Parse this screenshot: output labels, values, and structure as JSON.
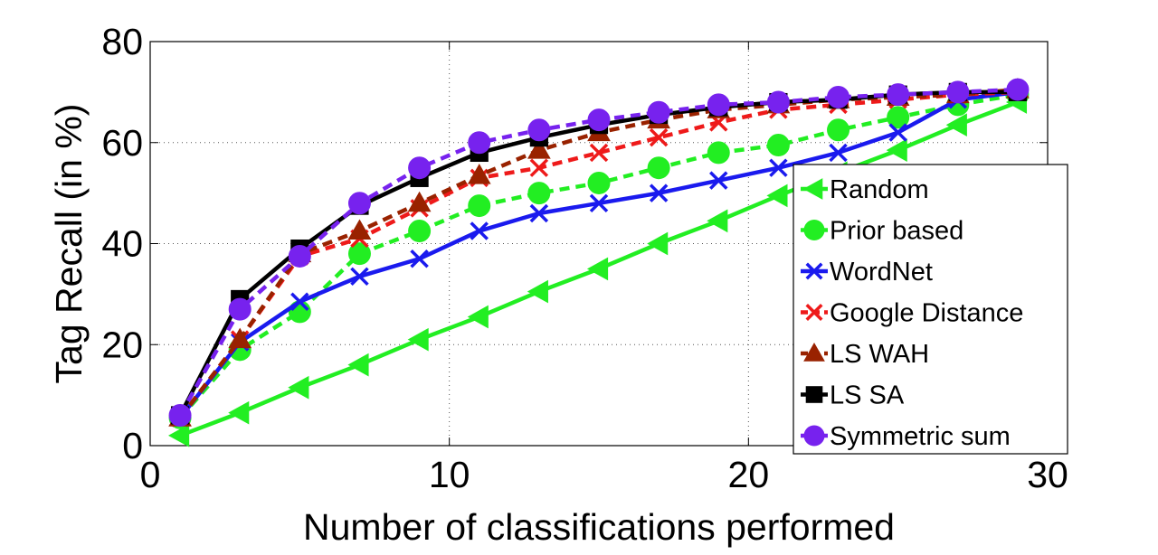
{
  "chart_data": {
    "type": "line",
    "title": "",
    "xlabel": "Number of classifications performed",
    "ylabel": "Tag Recall (in %)",
    "xlim": [
      0,
      30
    ],
    "ylim": [
      0,
      80
    ],
    "xticks": [
      0,
      10,
      20,
      30
    ],
    "yticks": [
      0,
      20,
      40,
      60,
      80
    ],
    "grid": true,
    "legend_position": "right",
    "x": [
      1,
      3,
      5,
      7,
      9,
      11,
      13,
      15,
      17,
      19,
      21,
      23,
      25,
      27,
      29
    ],
    "series": [
      {
        "name": "Random",
        "color": "#22ee22",
        "linestyle": "solid",
        "marker": "triangle-left",
        "values": [
          2,
          6.5,
          11.5,
          16,
          21,
          25.5,
          30.5,
          35,
          40,
          44.5,
          49.5,
          54,
          58.5,
          63.5,
          68
        ]
      },
      {
        "name": "Prior based",
        "color": "#22ee22",
        "linestyle": "dashed",
        "marker": "circle",
        "values": [
          5.5,
          19,
          26.5,
          38,
          42.5,
          47.5,
          50,
          52,
          55,
          58,
          59.5,
          62.5,
          65,
          67.5,
          69.5
        ]
      },
      {
        "name": "WordNet",
        "color": "#1a1aee",
        "linestyle": "solid",
        "marker": "x",
        "values": [
          5.5,
          20.5,
          28.5,
          33.5,
          37,
          42.5,
          46,
          48,
          50,
          52.5,
          55,
          58,
          62,
          68.5,
          70
        ]
      },
      {
        "name": "Google Distance",
        "color": "#ee1a1a",
        "linestyle": "dashed",
        "marker": "x",
        "values": [
          5.5,
          21,
          37.5,
          41,
          47,
          53,
          55,
          58,
          61,
          64,
          66.5,
          67.5,
          68.5,
          69.5,
          70
        ]
      },
      {
        "name": "LS WAH",
        "color": "#992200",
        "linestyle": "dashed",
        "marker": "triangle-up",
        "values": [
          5.5,
          21,
          38,
          42.5,
          48,
          53.5,
          58.5,
          62,
          64.5,
          66.5,
          67.5,
          68.5,
          69,
          69.5,
          70.5
        ]
      },
      {
        "name": "LS SA",
        "color": "#000000",
        "linestyle": "solid",
        "marker": "square",
        "values": [
          6,
          29,
          39,
          47.5,
          53,
          58,
          61,
          63.5,
          65.5,
          67,
          68,
          68.5,
          69.5,
          70,
          70
        ]
      },
      {
        "name": "Symmetric sum",
        "color": "#7722ee",
        "linestyle": "dashed",
        "marker": "circle",
        "values": [
          6,
          27,
          37.5,
          48,
          55,
          60,
          62.5,
          64.5,
          66,
          67.5,
          68,
          69,
          69.5,
          70,
          70.5
        ]
      }
    ]
  }
}
